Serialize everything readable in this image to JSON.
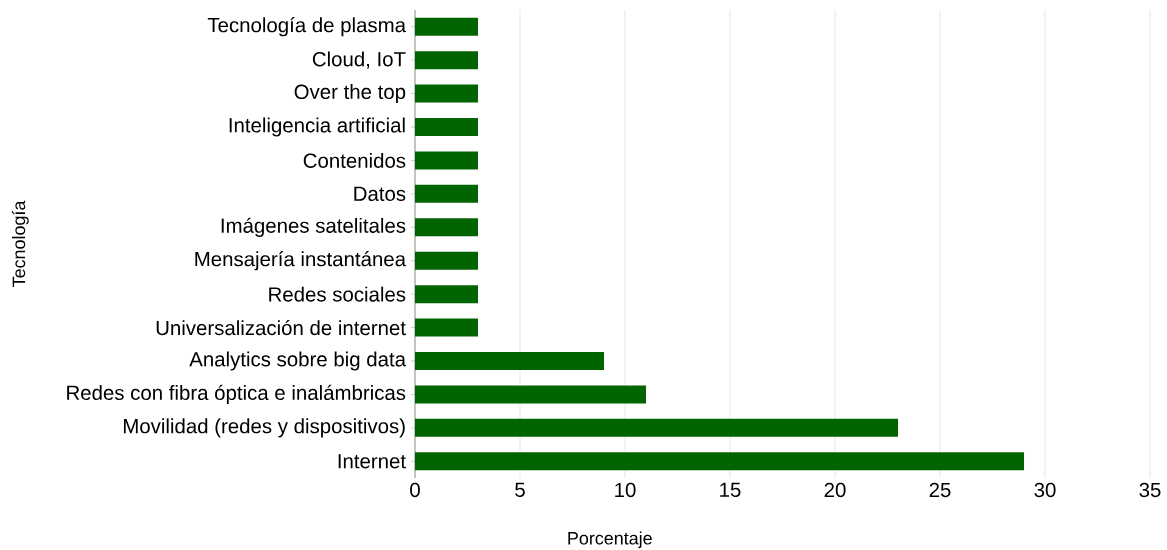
{
  "chart_data": {
    "type": "bar",
    "orientation": "horizontal",
    "xlabel": "Porcentaje",
    "ylabel": "Tecnología",
    "categories": [
      "Tecnología de plasma",
      "Cloud, IoT",
      "Over the top",
      "Inteligencia artificial",
      "Contenidos",
      "Datos",
      "Imágenes satelitales",
      "Mensajería instantánea",
      "Redes sociales",
      "Universalización de internet",
      "Analytics sobre big data",
      "Redes con fibra óptica e inalámbricas",
      "Movilidad (redes y dispositivos)",
      "Internet"
    ],
    "values": [
      3,
      3,
      3,
      3,
      3,
      3,
      3,
      3,
      3,
      3,
      9,
      11,
      23,
      29
    ],
    "color": "#006400",
    "xlim": [
      0,
      35
    ],
    "xticks": [
      0,
      5,
      10,
      15,
      20,
      25,
      30,
      35
    ],
    "grid": "x"
  }
}
